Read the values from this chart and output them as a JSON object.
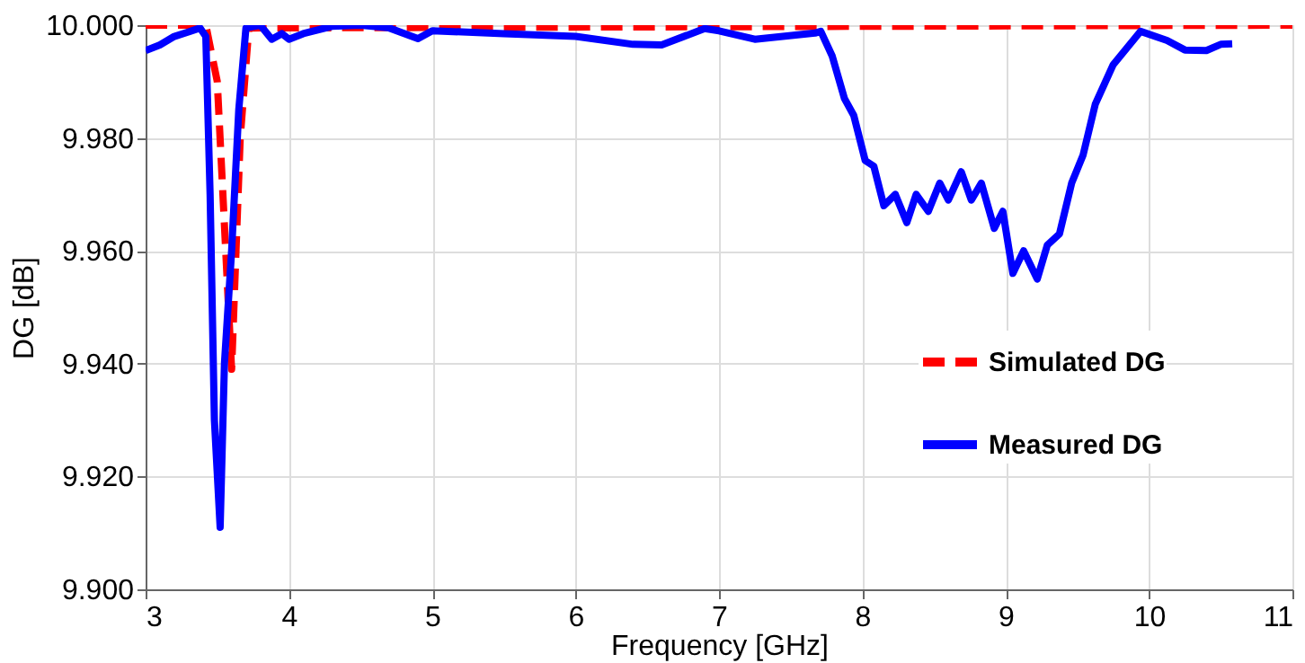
{
  "chart_data": {
    "type": "line",
    "xlabel": "Frequency [GHz]",
    "ylabel": "DG [dB]",
    "xlim": [
      3,
      11
    ],
    "xticks": [
      3,
      4,
      5,
      6,
      7,
      8,
      9,
      10,
      11
    ],
    "ylim": [
      9.9,
      10.0
    ],
    "yticks": [
      {
        "value": 9.9,
        "label": "9.900"
      },
      {
        "value": 9.92,
        "label": "9.920"
      },
      {
        "value": 9.94,
        "label": "9.940"
      },
      {
        "value": 9.96,
        "label": "9.960"
      },
      {
        "value": 9.98,
        "label": "9.980"
      },
      {
        "value": 10.0,
        "label": "10.000"
      }
    ],
    "grid": true,
    "legend": "bottom right",
    "series": [
      {
        "name": "Simulated DG",
        "color": "#ff0000",
        "line_style": "dashed",
        "x": [
          3,
          3.42,
          3.5,
          3.6,
          3.66,
          3.72,
          11
        ],
        "values": [
          10.0,
          10.0,
          9.99,
          9.939,
          9.98,
          9.9995,
          10.0
        ]
      },
      {
        "name": "Measured DG",
        "color": "#0000ff",
        "line_style": "solid",
        "x": [
          3.0,
          3.1,
          3.2,
          3.3,
          3.38,
          3.42,
          3.45,
          3.48,
          3.52,
          3.55,
          3.6,
          3.65,
          3.7,
          3.8,
          3.88,
          3.95,
          4.0,
          4.1,
          4.3,
          4.5,
          4.7,
          4.9,
          5.0,
          5.5,
          6.0,
          6.4,
          6.6,
          6.9,
          7.0,
          7.25,
          7.67,
          7.71,
          7.79,
          7.875,
          7.94,
          8.02,
          8.08,
          8.15,
          8.23,
          8.31,
          8.375,
          8.46,
          8.54,
          8.6,
          8.69,
          8.76,
          8.83,
          8.92,
          8.98,
          9.05,
          9.125,
          9.22,
          9.29,
          9.375,
          9.46,
          9.54,
          9.625,
          9.75,
          9.94,
          10.125,
          10.25,
          10.4,
          10.5,
          10.58
        ],
        "values": [
          9.9955,
          9.9965,
          9.998,
          9.9988,
          9.9995,
          9.998,
          9.97,
          9.93,
          9.911,
          9.94,
          9.96,
          9.985,
          9.9995,
          10.0,
          9.9975,
          9.9985,
          9.9975,
          9.9985,
          9.9998,
          10.0,
          9.9995,
          9.9976,
          9.999,
          9.9985,
          9.998,
          9.9966,
          9.9965,
          9.9994,
          9.999,
          9.9975,
          9.9986,
          9.9989,
          9.9945,
          9.987,
          9.984,
          9.976,
          9.975,
          9.968,
          9.97,
          9.965,
          9.97,
          9.967,
          9.972,
          9.969,
          9.974,
          9.969,
          9.972,
          9.964,
          9.967,
          9.956,
          9.96,
          9.955,
          9.961,
          9.963,
          9.972,
          9.977,
          9.986,
          9.993,
          9.9989,
          9.9973,
          9.9956,
          9.9955,
          9.9966,
          9.9967
        ]
      }
    ]
  }
}
